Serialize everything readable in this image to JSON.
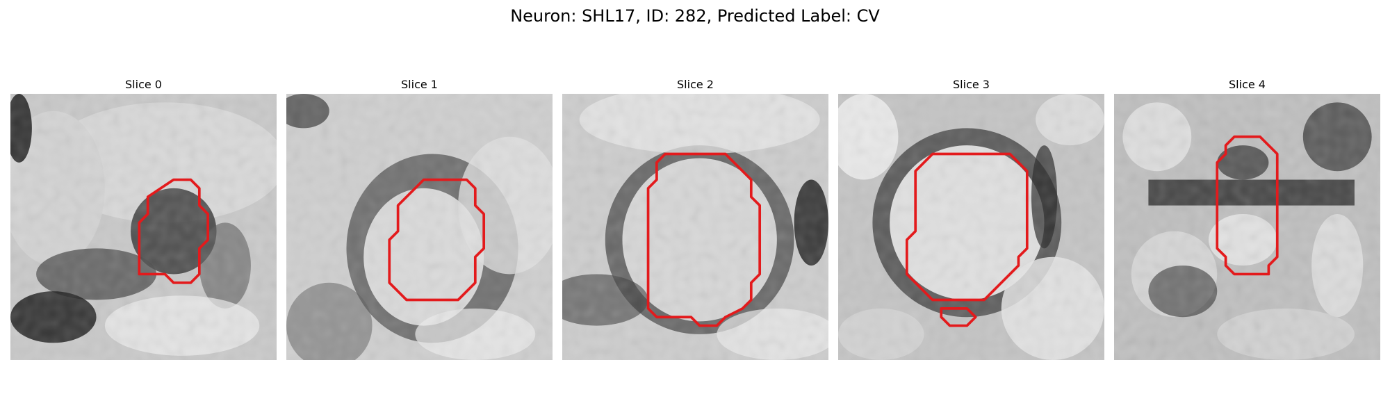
{
  "figure": {
    "title": "Neuron: SHL17, ID: 282, Predicted Label: CV",
    "contour_color": "#e31a1c"
  },
  "panels": [
    {
      "title": "Slice 0"
    },
    {
      "title": "Slice 1"
    },
    {
      "title": "Slice 2"
    },
    {
      "title": "Slice 3"
    },
    {
      "title": "Slice 4"
    }
  ]
}
